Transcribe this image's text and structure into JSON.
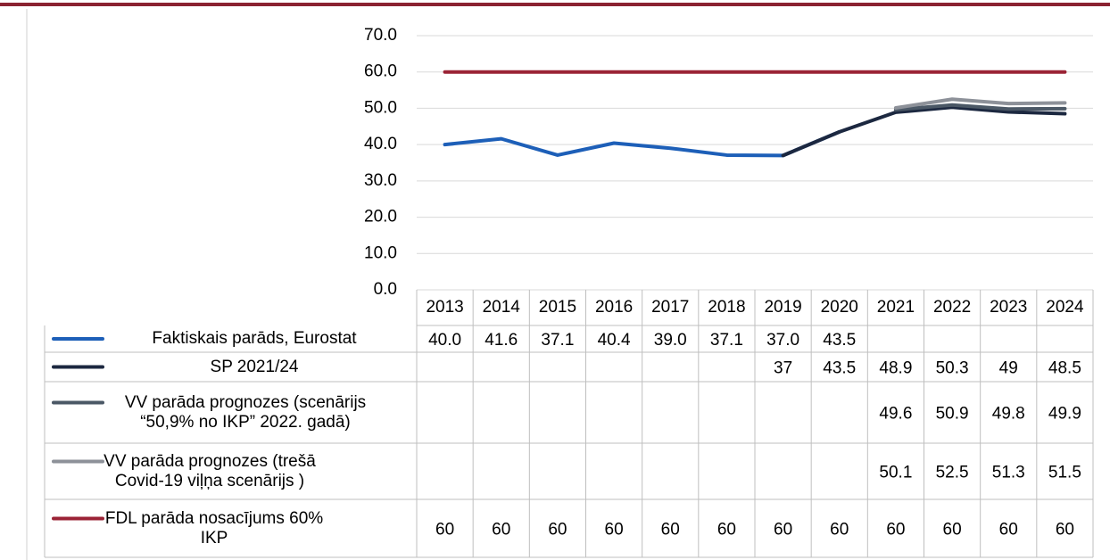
{
  "chart_data": {
    "type": "line",
    "categories": [
      "2013",
      "2014",
      "2015",
      "2016",
      "2017",
      "2018",
      "2019",
      "2020",
      "2021",
      "2022",
      "2023",
      "2024"
    ],
    "ylim": [
      0,
      70
    ],
    "yticks": [
      {
        "value": 0,
        "label": "0.0"
      },
      {
        "value": 10,
        "label": "10.0"
      },
      {
        "value": 20,
        "label": "20.0"
      },
      {
        "value": 30,
        "label": "30.0"
      },
      {
        "value": 40,
        "label": "40.0"
      },
      {
        "value": 50,
        "label": "50.0"
      },
      {
        "value": 60,
        "label": "60.0"
      },
      {
        "value": 70,
        "label": "70.0"
      }
    ],
    "grid": true,
    "series": [
      {
        "name": "Faktiskais parāds, Eurostat",
        "color": "#1d5fb8",
        "values": [
          40.0,
          41.6,
          37.1,
          40.4,
          39.0,
          37.1,
          37.0,
          43.5,
          null,
          null,
          null,
          null
        ],
        "value_labels": [
          "40.0",
          "41.6",
          "37.1",
          "40.4",
          "39.0",
          "37.1",
          "37.0",
          "43.5",
          null,
          null,
          null,
          null
        ]
      },
      {
        "name": "SP 2021/24",
        "color": "#1c2840",
        "values": [
          null,
          null,
          null,
          null,
          null,
          null,
          37,
          43.5,
          48.9,
          50.3,
          49,
          48.5
        ]
      },
      {
        "name": "VV parāda prognozes (scenārijs “50,9% no IKP” 2022. gadā)",
        "color": "#4b5866",
        "values": [
          null,
          null,
          null,
          null,
          null,
          null,
          null,
          null,
          49.6,
          50.9,
          49.8,
          49.9
        ]
      },
      {
        "name": "VV parāda prognozes (trešā Covid-19 viļņa scenārijs )",
        "color": "#8d9199",
        "values": [
          null,
          null,
          null,
          null,
          null,
          null,
          null,
          null,
          50.1,
          52.5,
          51.3,
          51.5
        ]
      },
      {
        "name": "FDL parāda nosacījums 60% IKP",
        "color": "#9b2335",
        "values": [
          60,
          60,
          60,
          60,
          60,
          60,
          60,
          60,
          60,
          60,
          60,
          60
        ]
      }
    ]
  }
}
